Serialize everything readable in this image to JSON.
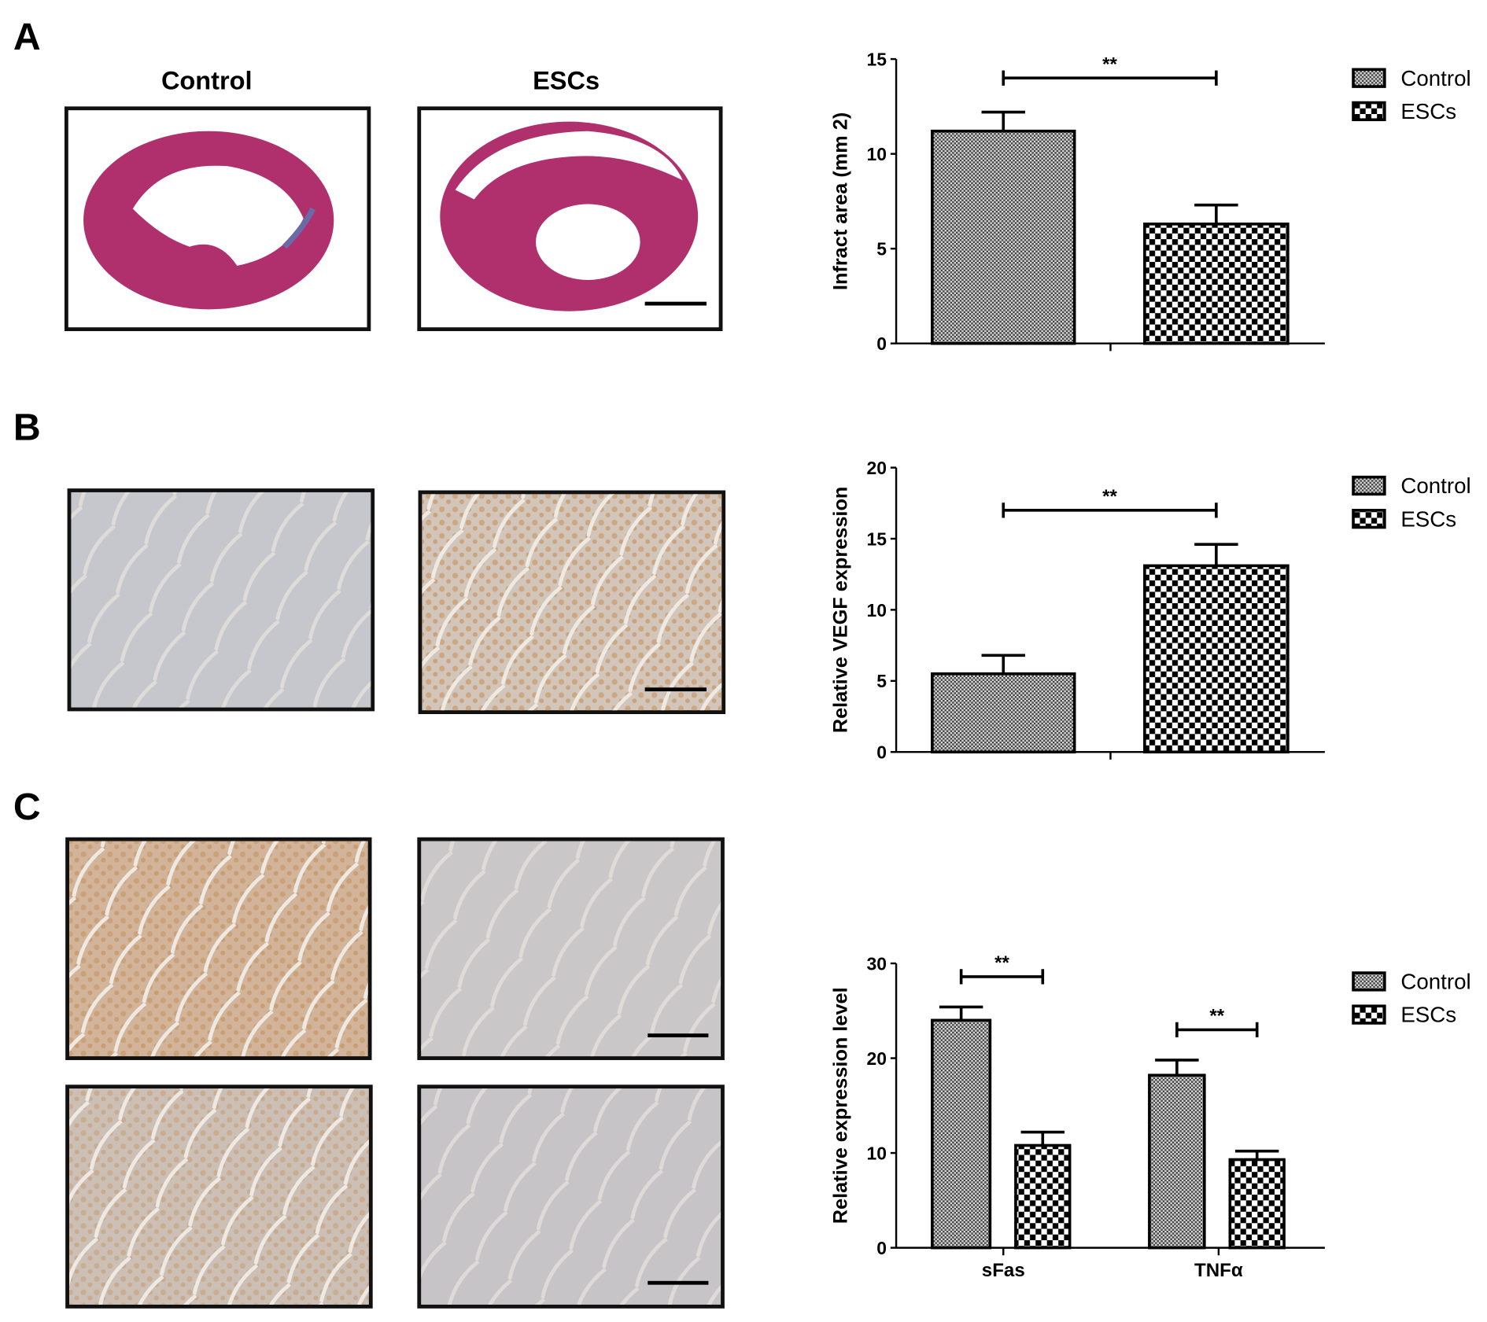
{
  "panels": [
    {
      "label": "A",
      "column_titles": [
        "Control",
        "ESCs"
      ]
    },
    {
      "label": "B"
    },
    {
      "label": "C"
    }
  ],
  "colors": {
    "control_fill": "#9a9a9a",
    "escs_fill": "#000000",
    "heart_stain": "#b0306e",
    "ihc_background": "#c9c6c4",
    "ihc_brown": "#c99a6a"
  },
  "chart_data": [
    {
      "type": "bar",
      "ylabel": "Infract area (mm 2)",
      "ylim": [
        0,
        15
      ],
      "yticks": [
        0,
        5,
        10,
        15
      ],
      "categories": [
        ""
      ],
      "series": [
        {
          "name": "Control",
          "values": [
            11.2
          ],
          "error": [
            1.0
          ]
        },
        {
          "name": "ESCs",
          "values": [
            6.3
          ],
          "error": [
            1.0
          ]
        }
      ],
      "significance": [
        {
          "between": [
            "Control",
            "ESCs"
          ],
          "category": 0,
          "label": "**"
        }
      ],
      "legend": "right",
      "grid": false
    },
    {
      "type": "bar",
      "ylabel": "Relative VEGF expression",
      "ylim": [
        0,
        20
      ],
      "yticks": [
        0,
        5,
        10,
        15,
        20
      ],
      "categories": [
        ""
      ],
      "series": [
        {
          "name": "Control",
          "values": [
            5.5
          ],
          "error": [
            1.3
          ]
        },
        {
          "name": "ESCs",
          "values": [
            13.1
          ],
          "error": [
            1.5
          ]
        }
      ],
      "significance": [
        {
          "between": [
            "Control",
            "ESCs"
          ],
          "category": 0,
          "label": "**"
        }
      ],
      "legend": "right",
      "grid": false
    },
    {
      "type": "bar",
      "ylabel": "Relative expression level",
      "ylim": [
        0,
        30
      ],
      "yticks": [
        0,
        10,
        20,
        30
      ],
      "categories": [
        "sFas",
        "TNFα"
      ],
      "series": [
        {
          "name": "Control",
          "values": [
            24.0,
            18.2
          ],
          "error": [
            1.4,
            1.6
          ]
        },
        {
          "name": "ESCs",
          "values": [
            10.8,
            9.3
          ],
          "error": [
            1.4,
            0.9
          ]
        }
      ],
      "significance": [
        {
          "between": [
            "Control",
            "ESCs"
          ],
          "category": 0,
          "label": "**"
        },
        {
          "between": [
            "Control",
            "ESCs"
          ],
          "category": 1,
          "label": "**"
        }
      ],
      "legend": "right",
      "grid": false
    }
  ]
}
